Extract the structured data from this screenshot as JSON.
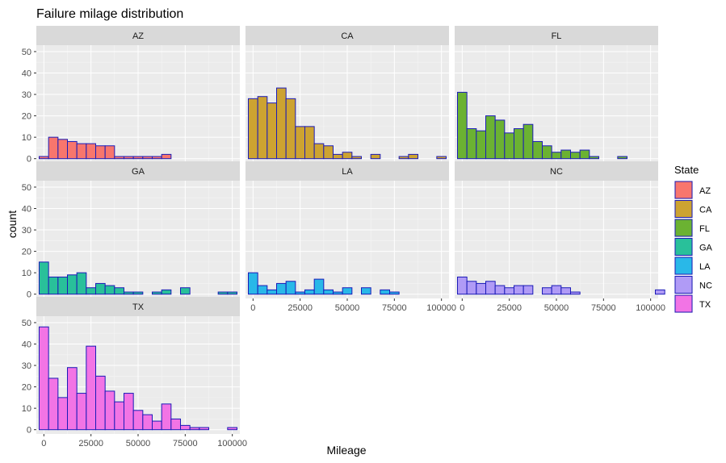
{
  "chart_data": {
    "type": "bar",
    "title": "Failure milage distribution",
    "xlabel": "Mileage",
    "ylabel": "count",
    "legend_title": "State",
    "legend_position": "right",
    "bin_width": 5000,
    "bin_starts": [
      -2500,
      2500,
      7500,
      12500,
      17500,
      22500,
      27500,
      32500,
      37500,
      42500,
      47500,
      52500,
      57500,
      62500,
      67500,
      72500,
      77500,
      82500,
      87500,
      92500,
      97500,
      102500
    ],
    "x_ticks": [
      0,
      25000,
      50000,
      75000,
      100000
    ],
    "x_tick_labels": [
      "0",
      "25000",
      "50000",
      "75000",
      "100000"
    ],
    "x_range": [
      -4000,
      104000
    ],
    "y_ticks": [
      0,
      10,
      20,
      30,
      40,
      50
    ],
    "y_tick_labels": [
      "0",
      "10",
      "20",
      "30",
      "40",
      "50"
    ],
    "y_range": [
      -2,
      53
    ],
    "grid": true,
    "bar_outline": "#1b1bb8",
    "panels": [
      {
        "name": "AZ",
        "color": "#f8766d",
        "values": [
          1,
          10,
          9,
          8,
          7,
          7,
          6,
          6,
          1,
          1,
          1,
          1,
          1,
          2,
          0,
          0,
          0,
          0,
          0,
          0,
          0,
          0
        ]
      },
      {
        "name": "CA",
        "color": "#cda331",
        "values": [
          28,
          29,
          26,
          33,
          28,
          15,
          15,
          7,
          6,
          2,
          3,
          1,
          0,
          2,
          0,
          0,
          1,
          2,
          0,
          0,
          1,
          0
        ]
      },
      {
        "name": "FL",
        "color": "#6bb232",
        "values": [
          31,
          14,
          13,
          20,
          18,
          12,
          14,
          16,
          8,
          6,
          3,
          4,
          3,
          4,
          1,
          0,
          0,
          1,
          0,
          0,
          0,
          0
        ]
      },
      {
        "name": "GA",
        "color": "#29c09a",
        "values": [
          15,
          8,
          8,
          9,
          10,
          3,
          5,
          4,
          3,
          1,
          1,
          0,
          1,
          2,
          0,
          3,
          0,
          0,
          0,
          1,
          1,
          0
        ]
      },
      {
        "name": "LA",
        "color": "#29b8e8",
        "values": [
          10,
          4,
          2,
          5,
          6,
          1,
          2,
          7,
          2,
          1,
          3,
          0,
          3,
          0,
          2,
          1,
          0,
          0,
          0,
          0,
          0,
          0
        ]
      },
      {
        "name": "NC",
        "color": "#b09bf6",
        "values": [
          8,
          6,
          5,
          6,
          4,
          3,
          4,
          4,
          0,
          3,
          4,
          3,
          1,
          0,
          0,
          0,
          0,
          0,
          0,
          0,
          0,
          2
        ]
      },
      {
        "name": "TX",
        "color": "#f274e5",
        "values": [
          48,
          24,
          15,
          29,
          17,
          39,
          25,
          18,
          13,
          17,
          9,
          7,
          4,
          12,
          5,
          2,
          1,
          1,
          0,
          0,
          1,
          0
        ]
      }
    ]
  }
}
